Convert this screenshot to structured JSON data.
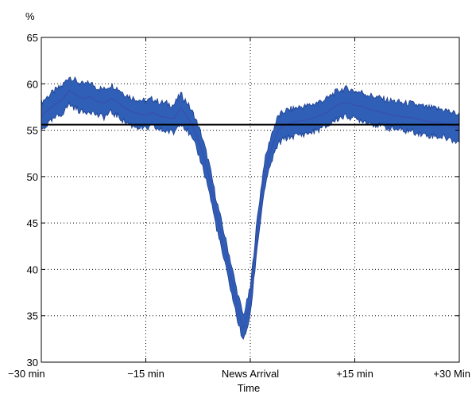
{
  "chart_data": {
    "type": "area",
    "ylabel": "%",
    "xlabel": "Time",
    "xlim": [
      -30,
      30
    ],
    "ylim": [
      30,
      65
    ],
    "grid": true,
    "x_ticks": [
      {
        "value": -30,
        "label": "−30 min"
      },
      {
        "value": -15,
        "label": "−15 min"
      },
      {
        "value": 0,
        "label": "News Arrival"
      },
      {
        "value": 15,
        "label": "+15 min"
      },
      {
        "value": 30,
        "label": "+30 Min"
      }
    ],
    "y_ticks": [
      30,
      35,
      40,
      45,
      50,
      55,
      60,
      65
    ],
    "colors": {
      "band_fill": "#2f5fb6",
      "band_edge": "#1d3f8f",
      "center_line": "#3a4fb0",
      "reference_line": "#000000"
    },
    "reference_line": {
      "y": 55.6
    },
    "series": [
      {
        "x": [
          -30,
          -29,
          -28,
          -27,
          -26,
          -25,
          -24,
          -23,
          -22,
          -21,
          -20,
          -19,
          -18,
          -17,
          -16,
          -15,
          -14,
          -13,
          -12,
          -11,
          -10,
          -9,
          -8,
          -7,
          -6,
          -5,
          -4,
          -3,
          -2,
          -1,
          0,
          1,
          2,
          3,
          4,
          5,
          6,
          7,
          8,
          9,
          10,
          11,
          12,
          13,
          14,
          15,
          16,
          17,
          18,
          19,
          20,
          21,
          22,
          23,
          24,
          25,
          26,
          27,
          28,
          29,
          30
        ],
        "y": [
          56.5,
          57.2,
          57.8,
          58.3,
          59.3,
          58.8,
          58.4,
          58.6,
          58.1,
          57.9,
          58.4,
          58.0,
          57.4,
          57.0,
          56.8,
          56.6,
          56.9,
          56.5,
          56.4,
          56.2,
          57.4,
          56.4,
          55.0,
          53.0,
          50.2,
          46.5,
          43.2,
          40.0,
          36.5,
          33.5,
          36.5,
          44.0,
          50.0,
          53.0,
          55.0,
          55.6,
          55.8,
          56.0,
          56.1,
          56.3,
          56.6,
          56.9,
          57.5,
          57.9,
          58.0,
          57.7,
          57.6,
          57.3,
          57.1,
          56.9,
          56.7,
          56.6,
          56.4,
          56.4,
          56.2,
          56.0,
          55.9,
          55.8,
          55.7,
          55.4,
          55.2
        ],
        "lower": [
          55.0,
          55.7,
          56.3,
          56.8,
          57.8,
          57.3,
          56.9,
          57.1,
          56.6,
          56.4,
          56.9,
          56.5,
          55.9,
          55.5,
          55.3,
          55.1,
          55.4,
          55.0,
          54.9,
          54.7,
          55.9,
          54.9,
          53.5,
          51.5,
          48.7,
          45.0,
          41.7,
          38.5,
          35.0,
          32.2,
          35.0,
          42.5,
          48.5,
          51.5,
          53.5,
          54.1,
          54.3,
          54.5,
          54.6,
          54.8,
          55.1,
          55.4,
          56.0,
          56.4,
          56.5,
          56.2,
          56.1,
          55.8,
          55.6,
          55.4,
          55.2,
          55.1,
          54.9,
          54.9,
          54.7,
          54.5,
          54.4,
          54.3,
          54.2,
          53.9,
          53.7
        ],
        "upper": [
          58.0,
          58.7,
          59.3,
          59.8,
          60.8,
          60.3,
          59.9,
          60.1,
          59.6,
          59.4,
          59.9,
          59.5,
          58.9,
          58.5,
          58.3,
          58.1,
          58.4,
          58.0,
          57.9,
          57.7,
          58.9,
          57.9,
          56.5,
          54.5,
          51.7,
          48.0,
          44.7,
          41.5,
          38.0,
          35.0,
          38.0,
          45.5,
          51.5,
          54.5,
          56.5,
          57.1,
          57.3,
          57.5,
          57.6,
          57.8,
          58.1,
          58.4,
          59.0,
          59.4,
          59.5,
          59.2,
          59.1,
          58.8,
          58.6,
          58.4,
          58.2,
          58.1,
          57.9,
          57.9,
          57.7,
          57.5,
          57.4,
          57.3,
          57.2,
          56.9,
          56.7
        ]
      }
    ]
  }
}
